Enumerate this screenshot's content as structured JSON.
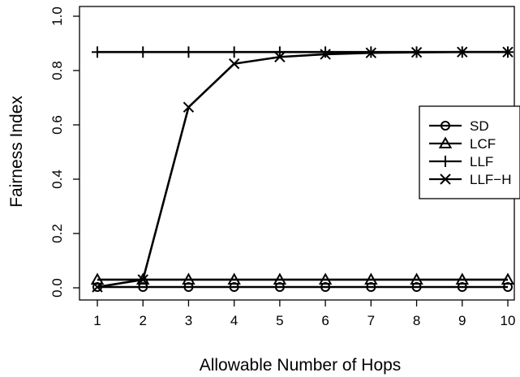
{
  "chart_data": {
    "type": "line",
    "title": "",
    "xlabel": "Allowable Number of Hops",
    "ylabel": "Fairness Index",
    "x": [
      1,
      2,
      3,
      4,
      5,
      6,
      7,
      8,
      9,
      10
    ],
    "xticks": [
      "1",
      "2",
      "3",
      "4",
      "5",
      "6",
      "7",
      "8",
      "9",
      "10"
    ],
    "yticks": [
      "0.0",
      "0.2",
      "0.4",
      "0.6",
      "0.8",
      "1.0"
    ],
    "ylim": [
      0,
      1
    ],
    "xlim": [
      1,
      10
    ],
    "grid": false,
    "legend_position": "right",
    "series": [
      {
        "name": "SD",
        "marker": "circle",
        "color": "#000000",
        "values": [
          0.003,
          0.003,
          0.003,
          0.003,
          0.003,
          0.003,
          0.003,
          0.003,
          0.003,
          0.003
        ]
      },
      {
        "name": "LCF",
        "marker": "triangle",
        "color": "#000000",
        "values": [
          0.03,
          0.03,
          0.03,
          0.03,
          0.03,
          0.03,
          0.03,
          0.03,
          0.03,
          0.03
        ]
      },
      {
        "name": "LLF",
        "marker": "plus",
        "color": "#000000",
        "values": [
          0.868,
          0.868,
          0.868,
          0.868,
          0.868,
          0.868,
          0.868,
          0.868,
          0.868,
          0.868
        ]
      },
      {
        "name": "LLF−H",
        "marker": "cross",
        "color": "#000000",
        "values": [
          0.003,
          0.03,
          0.665,
          0.825,
          0.85,
          0.86,
          0.865,
          0.867,
          0.868,
          0.868
        ]
      }
    ]
  }
}
